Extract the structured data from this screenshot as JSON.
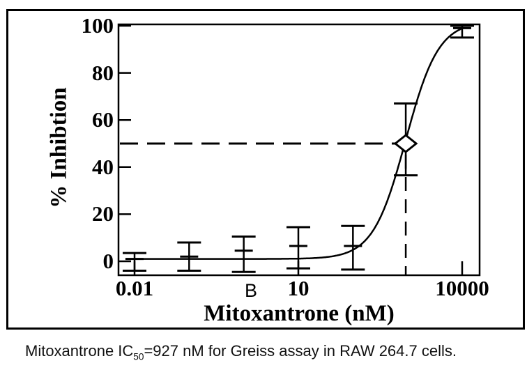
{
  "figure": {
    "panel_label": "B",
    "caption": {
      "prefix": "Mitoxantrone IC",
      "subscript": "50",
      "suffix": "=927 nM for Greiss assay in RAW 264.7 cells."
    }
  },
  "chart_data": {
    "type": "line",
    "title": "",
    "xlabel": "Mitoxantrone (nM)",
    "ylabel": "% Inhibtion",
    "x_scale": "log",
    "xlim": [
      0.0068,
      11000
    ],
    "ylim": [
      -5.9,
      100.6
    ],
    "grid": false,
    "legend": "none",
    "x_ticks": [
      {
        "value": 0.01,
        "label": "0.01"
      },
      {
        "value": 10,
        "label": "10"
      },
      {
        "value": 10000,
        "label": "10000"
      }
    ],
    "y_ticks": [
      {
        "value": 100,
        "label": "100"
      },
      {
        "value": 80,
        "label": "80"
      },
      {
        "value": 60,
        "label": "60"
      },
      {
        "value": 40,
        "label": "40"
      },
      {
        "value": 20,
        "label": "20"
      },
      {
        "value": 0,
        "label": "0"
      }
    ],
    "points": [
      {
        "x": 0.01,
        "y": 1,
        "err_low": -4,
        "err_high": 3.5
      },
      {
        "x": 0.1,
        "y": 2,
        "err_low": -4,
        "err_high": 8
      },
      {
        "x": 1,
        "y": 4.5,
        "err_low": -4.5,
        "err_high": 10.5
      },
      {
        "x": 10,
        "y": 6.5,
        "err_low": -3,
        "err_high": 14.5
      },
      {
        "x": 100,
        "y": 6.5,
        "err_low": -3.5,
        "err_high": 15
      },
      {
        "x": 927,
        "y": 50,
        "err_low": 36.5,
        "err_high": 67
      },
      {
        "x": 10000,
        "y": 99,
        "err_low": 95,
        "err_high": 100
      }
    ],
    "curve_fit": {
      "model": "4PL",
      "bottom": 1,
      "top": 102,
      "ic50_nM": 927,
      "hill": 1.45
    },
    "ic50_marker": {
      "x": 927,
      "y": 50,
      "shape": "open-diamond"
    },
    "reference_lines": [
      {
        "type": "horizontal",
        "y": 50,
        "style": "dashed"
      },
      {
        "type": "vertical",
        "x": 927,
        "style": "dashed"
      }
    ],
    "colors": {
      "ink": "#000000",
      "background": "#ffffff"
    }
  }
}
